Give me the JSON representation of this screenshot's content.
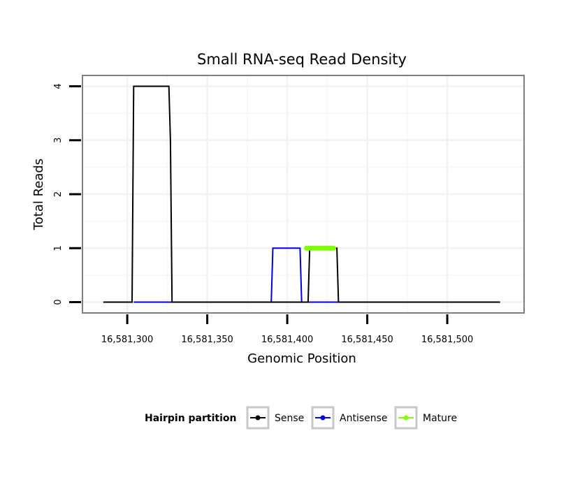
{
  "chart_data": {
    "type": "line",
    "title": "Small RNA-seq Read Density",
    "xlabel": "Genomic Position",
    "ylabel": "Total Reads",
    "xlim": [
      16581272,
      16581548
    ],
    "ylim": [
      -0.2,
      4.2
    ],
    "x_ticks": [
      16581300,
      16581350,
      16581400,
      16581450,
      16581500
    ],
    "x_tick_labels": [
      "16,581,300",
      "16,581,350",
      "16,581,400",
      "16,581,450",
      "16,581,500"
    ],
    "y_ticks": [
      0,
      1,
      2,
      3,
      4
    ],
    "y_tick_labels": [
      "0",
      "1",
      "2",
      "3",
      "4"
    ],
    "grid": true,
    "legend": {
      "title": "Hairpin partition",
      "position": "bottom",
      "entries": [
        "Sense",
        "Antisense",
        "Mature"
      ]
    },
    "series": [
      {
        "name": "Sense",
        "color": "#000000",
        "x": [
          16581285,
          16581303,
          16581304,
          16581326,
          16581327,
          16581328,
          16581413,
          16581414,
          16581431,
          16581432,
          16581533
        ],
        "y": [
          0,
          0,
          4,
          4,
          3,
          0,
          0,
          1,
          1,
          0,
          0
        ]
      },
      {
        "name": "Antisense",
        "color": "#0000ee",
        "x": [
          16581304,
          16581327,
          16581390,
          16581391,
          16581408,
          16581409,
          16581432
        ],
        "y": [
          0,
          0,
          0,
          1,
          1,
          0,
          0
        ]
      },
      {
        "name": "Mature",
        "color": "#7fff00",
        "x": [
          16581412,
          16581429
        ],
        "y": [
          1,
          1
        ]
      }
    ]
  }
}
